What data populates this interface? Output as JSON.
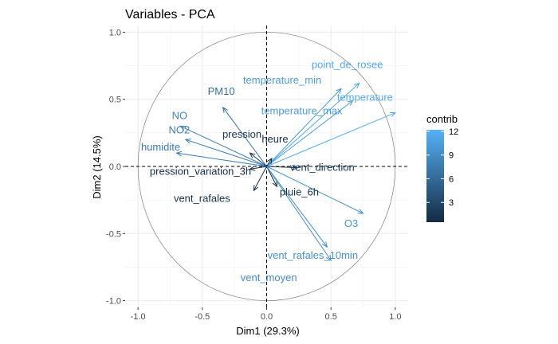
{
  "chart_data": {
    "type": "scatter",
    "title": "Variables - PCA",
    "xlabel": "Dim1 (29.3%)",
    "ylabel": "Dim2 (14.5%)",
    "xlim": [
      -1.1,
      1.1
    ],
    "ylim": [
      -1.05,
      1.05
    ],
    "x_ticks": [
      -1.0,
      -0.5,
      0.0,
      0.5,
      1.0
    ],
    "y_ticks": [
      -1.0,
      -0.5,
      0.0,
      0.5,
      1.0
    ],
    "x_tick_labels": [
      "-1.0",
      "-0.5",
      "0.0",
      "0.5",
      "1.0"
    ],
    "y_tick_labels": [
      "-1.0",
      "-0.5",
      "0.0",
      "0.5",
      "1.0"
    ],
    "grid": true,
    "unit_circle": true,
    "legend": {
      "title": "contrib",
      "position": "right",
      "ticks": [
        3,
        6,
        9,
        12
      ],
      "range": [
        0.5,
        12.2
      ],
      "low_color": "#132B43",
      "high_color": "#56B1F7"
    },
    "variables": [
      {
        "name": "point_de_rosee",
        "x": 0.72,
        "y": 0.62,
        "contrib": 11.5
      },
      {
        "name": "temperature_min",
        "x": 0.58,
        "y": 0.58,
        "contrib": 10.2
      },
      {
        "name": "temperature_max",
        "x": 0.67,
        "y": 0.49,
        "contrib": 10.4
      },
      {
        "name": "temperature",
        "x": 1.0,
        "y": 0.4,
        "contrib": 11.6
      },
      {
        "name": "PM10",
        "x": -0.34,
        "y": 0.44,
        "contrib": 6.5
      },
      {
        "name": "NO",
        "x": -0.67,
        "y": 0.3,
        "contrib": 8.2
      },
      {
        "name": "NO2",
        "x": -0.63,
        "y": 0.2,
        "contrib": 7.8
      },
      {
        "name": "pression",
        "x": -0.13,
        "y": 0.1,
        "contrib": 1.5
      },
      {
        "name": "humidite",
        "x": -0.7,
        "y": 0.1,
        "contrib": 7.5
      },
      {
        "name": "heure",
        "x": 0.04,
        "y": 0.06,
        "contrib": 0.6
      },
      {
        "name": "vent_direction",
        "x": 0.24,
        "y": -0.01,
        "contrib": 1.6
      },
      {
        "name": "pression_variation_3h",
        "x": -0.13,
        "y": -0.02,
        "contrib": 0.6
      },
      {
        "name": "vent_rafales",
        "x": -0.1,
        "y": -0.18,
        "contrib": 1.0
      },
      {
        "name": "pluie_6h",
        "x": 0.08,
        "y": -0.15,
        "contrib": 0.9
      },
      {
        "name": "O3",
        "x": 0.75,
        "y": -0.35,
        "contrib": 9.6
      },
      {
        "name": "vent_rafales_10min",
        "x": 0.47,
        "y": -0.6,
        "contrib": 9.3
      },
      {
        "name": "vent_moyen",
        "x": 0.5,
        "y": -0.7,
        "contrib": 9.0
      }
    ]
  }
}
